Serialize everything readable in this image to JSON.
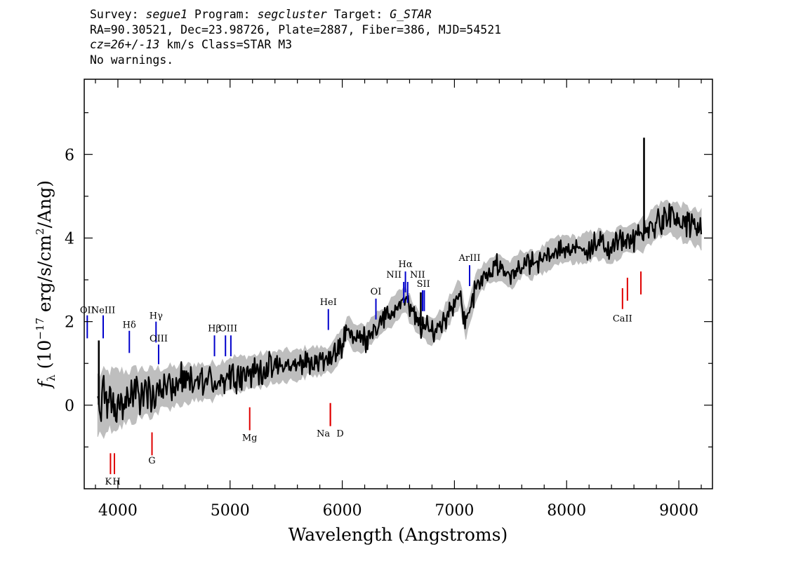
{
  "header": {
    "line1": {
      "survey_label": "Survey: ",
      "survey": "segue1",
      "program_label": " Program: ",
      "program": "segcluster",
      "target_label": " Target: ",
      "target": "G_STAR"
    },
    "line2": "RA=90.30521, Dec=23.98726, Plate=2887, Fiber=386, MJD=54521",
    "line3": {
      "cz": "cz=26+/-13",
      "rest": " km/s Class=STAR M3"
    },
    "line4": "No warnings."
  },
  "colors": {
    "flux": "#000000",
    "error_band": "#bebebe",
    "emission_marker": "#0000cc",
    "absorption_marker": "#e00000"
  },
  "chart_data": {
    "type": "line",
    "xlabel": "Wavelength (Angstroms)",
    "ylabel": "f_λ (10^-17 erg/s/cm²/Ang)",
    "ylabel_parts": {
      "f": "f",
      "sub": "λ",
      "a": " (10",
      "exp1": "−17",
      "b": " erg/s/cm",
      "exp2": "2",
      "c": "/Ang)"
    },
    "xlim": [
      3700,
      9300
    ],
    "ylim": [
      -2.0,
      7.8
    ],
    "x_ticks": [
      4000,
      5000,
      6000,
      7000,
      8000,
      9000
    ],
    "x_tick_labels": [
      "4000",
      "5000",
      "6000",
      "7000",
      "8000",
      "9000"
    ],
    "y_ticks": [
      0,
      2,
      4,
      6
    ],
    "y_tick_labels": [
      "0",
      "2",
      "4",
      "6"
    ],
    "series": [
      {
        "role": "flux",
        "x": [
          3820,
          3900,
          4000,
          4100,
          4200,
          4300,
          4400,
          4500,
          4600,
          4700,
          4800,
          4900,
          5000,
          5100,
          5200,
          5300,
          5400,
          5500,
          5600,
          5700,
          5800,
          5900,
          6000,
          6050,
          6100,
          6200,
          6300,
          6400,
          6500,
          6560,
          6620,
          6700,
          6800,
          6900,
          7000,
          7050,
          7100,
          7200,
          7300,
          7400,
          7500,
          7600,
          7700,
          7800,
          7900,
          8000,
          8100,
          8200,
          8300,
          8400,
          8500,
          8600,
          8700,
          8800,
          8900,
          9000,
          9100,
          9200
        ],
        "y": [
          0.0,
          0.1,
          0.15,
          0.2,
          0.3,
          0.3,
          0.4,
          0.45,
          0.5,
          0.55,
          0.55,
          0.6,
          0.75,
          0.75,
          0.8,
          0.85,
          0.9,
          0.95,
          0.95,
          1.05,
          1.05,
          1.1,
          1.5,
          1.9,
          1.6,
          1.6,
          1.9,
          2.1,
          2.4,
          2.55,
          2.2,
          1.9,
          1.75,
          2.0,
          2.5,
          2.7,
          1.9,
          2.9,
          3.2,
          3.3,
          3.1,
          3.4,
          3.35,
          3.5,
          3.7,
          3.75,
          3.7,
          3.8,
          3.85,
          3.75,
          3.95,
          4.0,
          4.1,
          4.4,
          4.5,
          4.4,
          4.3,
          4.2
        ]
      },
      {
        "role": "error_band",
        "x": [
          3820,
          4000,
          4500,
          5000,
          5500,
          6000,
          6500,
          7000,
          7500,
          8000,
          8500,
          9000,
          9200
        ],
        "halfwidth": [
          0.7,
          0.65,
          0.45,
          0.4,
          0.35,
          0.3,
          0.3,
          0.3,
          0.3,
          0.3,
          0.35,
          0.4,
          0.4
        ]
      }
    ],
    "spikes": [
      {
        "x": 3830,
        "y": 1.55
      },
      {
        "x": 6700,
        "y": 2.7
      },
      {
        "x": 8690,
        "y": 6.4
      }
    ],
    "emission_lines": [
      {
        "label": "OII",
        "x": 3727,
        "y_bottom": 1.6,
        "y_top": 2.15,
        "label_y": 2.2
      },
      {
        "label": "NeIII",
        "x": 3869,
        "y_bottom": 1.6,
        "y_top": 2.15,
        "label_y": 2.2
      },
      {
        "label": "Hδ",
        "x": 4102,
        "y_bottom": 1.25,
        "y_top": 1.78,
        "label_y": 1.85
      },
      {
        "label": "Hγ",
        "x": 4340,
        "y_bottom": 1.5,
        "y_top": 2.0,
        "label_y": 2.07
      },
      {
        "label": "OIII",
        "x": 4363,
        "y_bottom": 0.98,
        "y_top": 1.45,
        "label_y": 1.52
      },
      {
        "label": "Hβ",
        "x": 4861,
        "y_bottom": 1.17,
        "y_top": 1.67,
        "label_y": 1.77
      },
      {
        "label": "OIII",
        "x": 4959,
        "y_bottom": 1.17,
        "y_top": 1.67,
        "label_y": 1.77
      },
      {
        "label": "OIII",
        "x": 5007,
        "y_bottom": 1.17,
        "y_top": 1.67,
        "label_y": 1.77
      },
      {
        "label": "HeI",
        "x": 5876,
        "y_bottom": 1.8,
        "y_top": 2.3,
        "label_y": 2.4
      },
      {
        "label": "OI",
        "x": 6300,
        "y_bottom": 2.05,
        "y_top": 2.55,
        "label_y": 2.65
      },
      {
        "label": "NII",
        "x": 6548,
        "y_bottom": 2.45,
        "y_top": 2.95,
        "label_y": 3.05
      },
      {
        "label": "Hα",
        "x": 6563,
        "y_bottom": 2.7,
        "y_top": 3.2,
        "label_y": 3.3
      },
      {
        "label": "NII",
        "x": 6583,
        "y_bottom": 2.45,
        "y_top": 2.95,
        "label_y": 3.05
      },
      {
        "label": "SII",
        "x": 6716,
        "y_bottom": 2.25,
        "y_top": 2.75,
        "label_y": 2.83
      },
      {
        "label": "SII",
        "x": 6731,
        "y_bottom": 2.25,
        "y_top": 2.75,
        "label_y": 2.83
      },
      {
        "label": "ArIII",
        "x": 7135,
        "y_bottom": 2.85,
        "y_top": 3.35,
        "label_y": 3.45
      }
    ],
    "absorption_lines": [
      {
        "label": "K",
        "x": 3934,
        "y_bottom": -1.65,
        "y_top": -1.15,
        "label_y": -1.9
      },
      {
        "label": "H",
        "x": 3969,
        "y_bottom": -1.65,
        "y_top": -1.15,
        "label_y": -1.9
      },
      {
        "label": "G",
        "x": 4304,
        "y_bottom": -1.2,
        "y_top": -0.65,
        "label_y": -1.4
      },
      {
        "label": "Mg",
        "x": 5175,
        "y_bottom": -0.6,
        "y_top": -0.05,
        "label_y": -0.85
      },
      {
        "label": "Na",
        "x": 5894,
        "y_bottom": -0.5,
        "y_top": 0.05,
        "label_y": -0.75
      },
      {
        "label": "D",
        "x": 5894,
        "y_bottom": -0.5,
        "y_top": 0.05,
        "label_y": -0.75
      },
      {
        "label": "CaII",
        "x": 8498,
        "y_bottom": 2.3,
        "y_top": 2.8,
        "label_y": 2.0
      },
      {
        "label": "",
        "x": 8542,
        "y_bottom": 2.5,
        "y_top": 3.05,
        "label_y": 2.0
      },
      {
        "label": "",
        "x": 8662,
        "y_bottom": 2.65,
        "y_top": 3.2,
        "label_y": 2.0
      }
    ]
  }
}
